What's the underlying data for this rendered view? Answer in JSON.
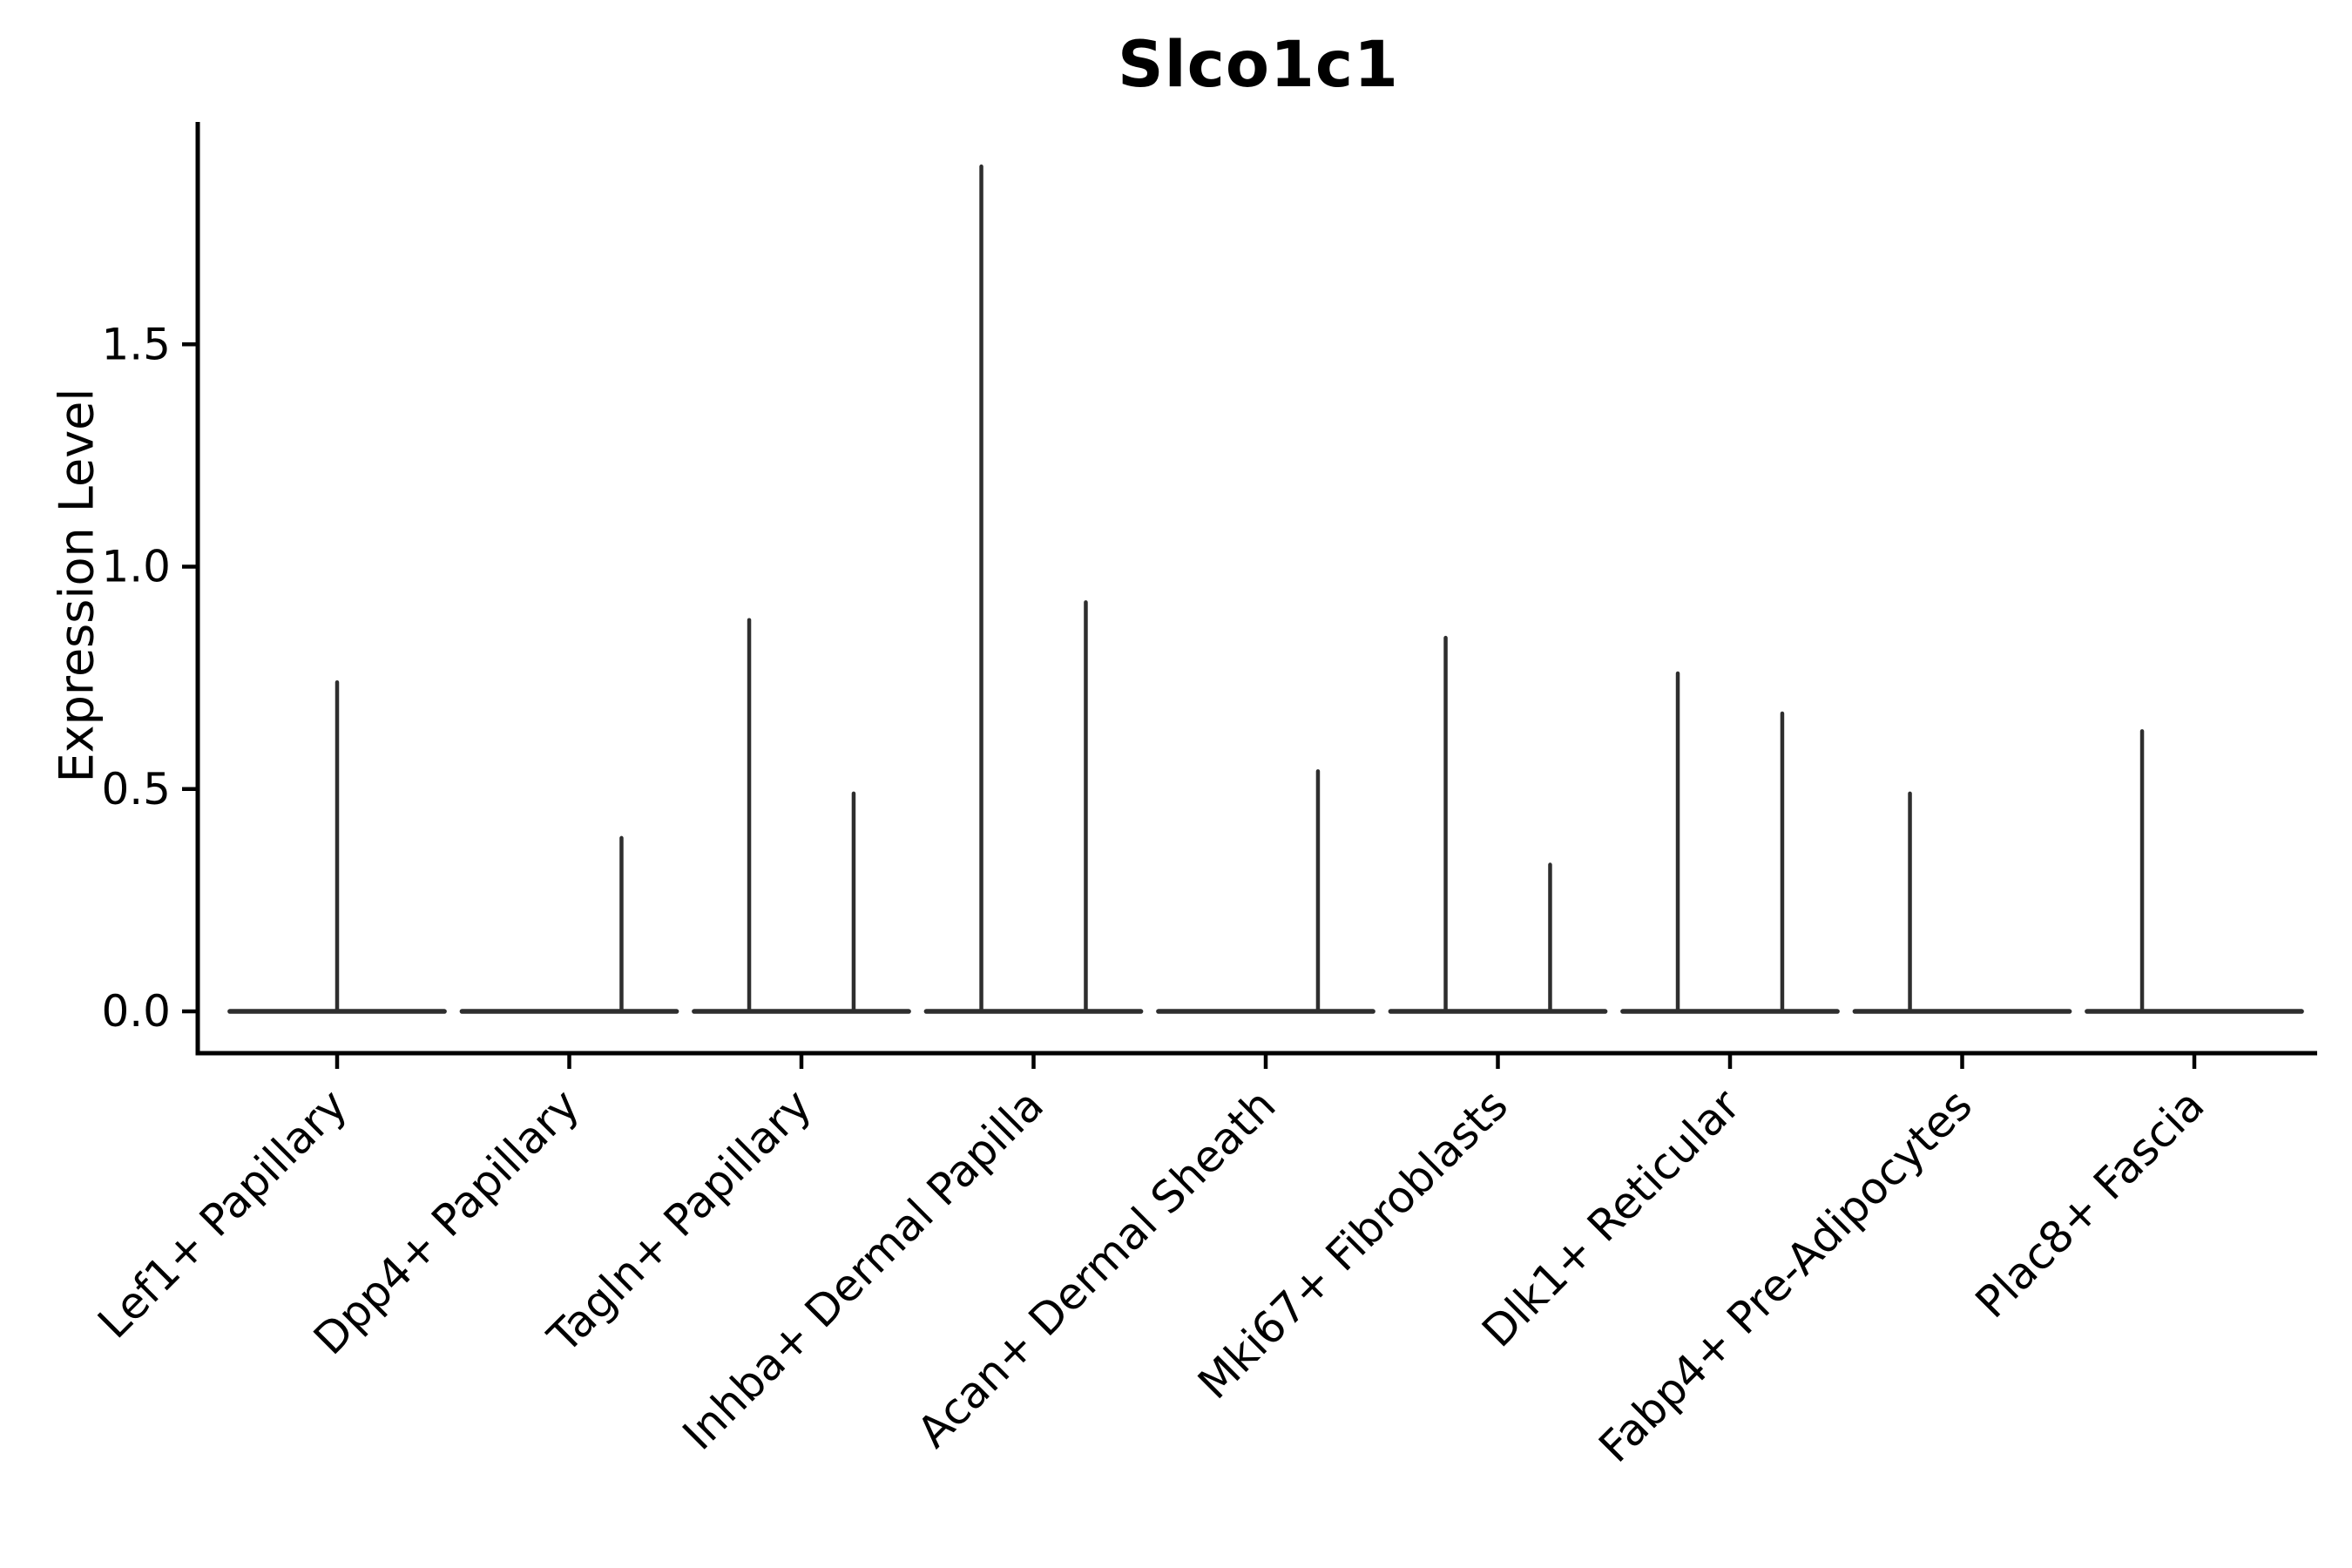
{
  "title": "Slco1c1",
  "axes": {
    "ylabel": "Expression Level",
    "ytick_labels": [
      "0.0",
      "0.5",
      "1.0",
      "1.5"
    ]
  },
  "chart_data": {
    "type": "violin",
    "title": "Slco1c1",
    "xlabel": "",
    "ylabel": "Expression Level",
    "ylim": [
      -0.094,
      2.0
    ],
    "ytick_values": [
      0.0,
      0.5,
      1.0,
      1.5
    ],
    "ytick_labels": [
      "0.0",
      "0.5",
      "1.0",
      "1.5"
    ],
    "grid": false,
    "legend": null,
    "violin_line_color": "#2e2e2e",
    "axis_color": "#000000",
    "categories": [
      "Lef1+ Papillary",
      "Dpp4+ Papillary",
      "Tagln+ Papillary",
      "Inhba+ Dermal Papilla",
      "Acan+ Dermal Sheath",
      "Mki67+ Fibroblasts",
      "Dlk1+ Reticular",
      "Fabp4+ Pre-Adipocytes",
      "Plac8+ Fascia"
    ],
    "violins": [
      {
        "category": "Lef1+ Papillary",
        "baseline_value": 0.0,
        "spikes": [
          {
            "offset_frac": 0.0,
            "peak": 0.74
          }
        ]
      },
      {
        "category": "Dpp4+ Papillary",
        "baseline_value": 0.0,
        "spikes": [
          {
            "offset_frac": 0.225,
            "peak": 0.39
          }
        ]
      },
      {
        "category": "Tagln+ Papillary",
        "baseline_value": 0.0,
        "spikes": [
          {
            "offset_frac": -0.225,
            "peak": 0.88
          },
          {
            "offset_frac": 0.225,
            "peak": 0.49
          }
        ]
      },
      {
        "category": "Inhba+ Dermal Papilla",
        "baseline_value": 0.0,
        "spikes": [
          {
            "offset_frac": -0.225,
            "peak": 1.9
          },
          {
            "offset_frac": 0.225,
            "peak": 0.92
          }
        ]
      },
      {
        "category": "Acan+ Dermal Sheath",
        "baseline_value": 0.0,
        "spikes": [
          {
            "offset_frac": 0.225,
            "peak": 0.54
          }
        ]
      },
      {
        "category": "Mki67+ Fibroblasts",
        "baseline_value": 0.0,
        "spikes": [
          {
            "offset_frac": -0.225,
            "peak": 0.84
          },
          {
            "offset_frac": 0.225,
            "peak": 0.33
          }
        ]
      },
      {
        "category": "Dlk1+ Reticular",
        "baseline_value": 0.0,
        "spikes": [
          {
            "offset_frac": -0.225,
            "peak": 0.76
          },
          {
            "offset_frac": 0.225,
            "peak": 0.67
          }
        ]
      },
      {
        "category": "Fabp4+ Pre-Adipocytes",
        "baseline_value": 0.0,
        "spikes": [
          {
            "offset_frac": -0.225,
            "peak": 0.49
          }
        ]
      },
      {
        "category": "Plac8+ Fascia",
        "baseline_value": 0.0,
        "spikes": [
          {
            "offset_frac": -0.225,
            "peak": 0.63
          }
        ]
      }
    ],
    "baseline_halfwidth_frac": 0.462
  }
}
